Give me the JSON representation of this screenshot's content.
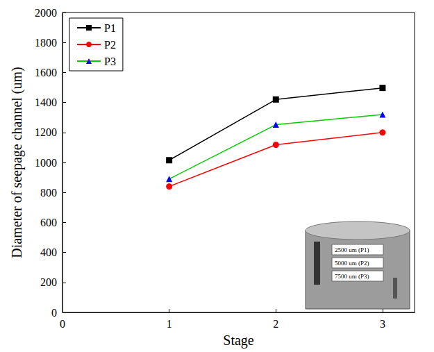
{
  "chart_data": {
    "type": "line",
    "x_label": "Stage",
    "y_label": "Diameter of seepage channel (um)",
    "x": [
      1,
      2,
      3
    ],
    "series": [
      {
        "name": "P1",
        "color": "#000000",
        "marker": "square",
        "values": [
          1015,
          1420,
          1497
        ]
      },
      {
        "name": "P2",
        "color": "#ff0000",
        "marker": "circle",
        "values": [
          840,
          1118,
          1200
        ]
      },
      {
        "name": "P3",
        "color": "#00cc00",
        "colors": [
          "#0000ff",
          "#0000ff",
          "#0000ff"
        ],
        "marker": "triangle",
        "values": [
          890,
          1252,
          1320
        ]
      }
    ],
    "xlim": [
      0,
      3.3
    ],
    "xticks": [
      0,
      1,
      2,
      3
    ],
    "ylim": [
      0,
      2000
    ],
    "yticks": [
      0,
      200,
      400,
      600,
      800,
      1000,
      1200,
      1400,
      1600,
      1800,
      2000
    ],
    "grid": false,
    "legend": "upper left",
    "annotations": [
      "2500 um (P1)",
      "5000 um (P2)",
      "7500 um (P3)"
    ]
  }
}
